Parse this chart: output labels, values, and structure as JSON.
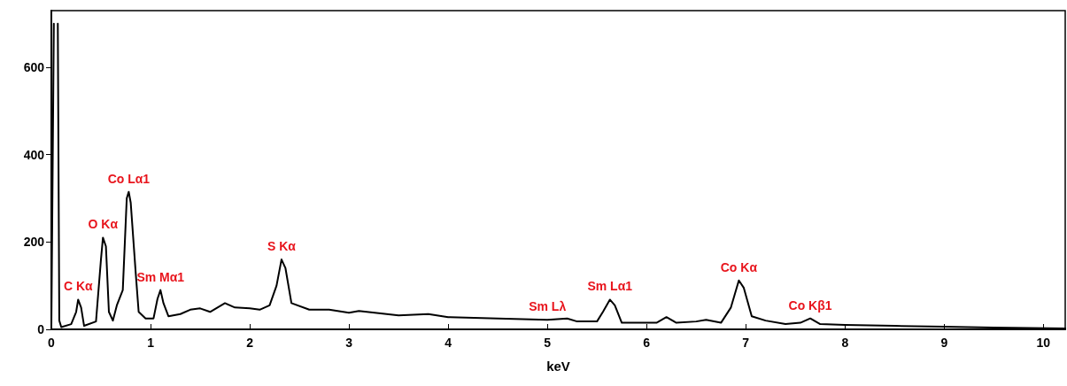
{
  "chart_data": {
    "type": "line",
    "xlabel": "keV",
    "xlim": [
      0,
      10.22
    ],
    "xticks": [
      0,
      1,
      2,
      3,
      4,
      5,
      6,
      7,
      8,
      9,
      10
    ],
    "ylim": [
      0,
      730
    ],
    "yticks": [
      0,
      200,
      400,
      600
    ],
    "grid": false,
    "marker": "none",
    "line_style": "solid",
    "series": [
      {
        "color": "#000000",
        "x": [
          0,
          0.025,
          0.03,
          0.06,
          0.065,
          0.08,
          0.1,
          0.2,
          0.25,
          0.27,
          0.3,
          0.33,
          0.45,
          0.5,
          0.52,
          0.55,
          0.58,
          0.62,
          0.66,
          0.72,
          0.76,
          0.78,
          0.8,
          0.85,
          0.88,
          0.95,
          1.03,
          1.07,
          1.1,
          1.13,
          1.18,
          1.3,
          1.4,
          1.5,
          1.6,
          1.75,
          1.85,
          2.0,
          2.1,
          2.2,
          2.27,
          2.32,
          2.36,
          2.42,
          2.6,
          2.8,
          3.0,
          3.1,
          3.5,
          3.8,
          4.0,
          4.5,
          5.0,
          5.2,
          5.3,
          5.5,
          5.56,
          5.63,
          5.68,
          5.75,
          6.1,
          6.2,
          6.3,
          6.5,
          6.6,
          6.75,
          6.85,
          6.93,
          6.98,
          7.06,
          7.2,
          7.4,
          7.55,
          7.65,
          7.75,
          8.0,
          8.5,
          9.0,
          9.5,
          10.22
        ],
        "values": [
          0,
          700,
          null,
          null,
          700,
          20,
          5,
          12,
          40,
          68,
          50,
          8,
          18,
          160,
          210,
          190,
          40,
          20,
          55,
          90,
          300,
          315,
          290,
          130,
          40,
          25,
          25,
          70,
          90,
          60,
          30,
          35,
          45,
          48,
          40,
          60,
          50,
          48,
          45,
          55,
          100,
          160,
          140,
          60,
          45,
          45,
          38,
          42,
          32,
          35,
          28,
          25,
          22,
          25,
          18,
          18,
          40,
          68,
          55,
          15,
          15,
          28,
          15,
          18,
          22,
          15,
          50,
          112,
          95,
          30,
          20,
          12,
          15,
          25,
          12,
          10,
          8,
          6,
          4,
          2
        ]
      }
    ],
    "annotations": [
      {
        "text": "C Kα",
        "x": 0.27,
        "y": 68
      },
      {
        "text": "O Kα",
        "x": 0.52,
        "y": 210
      },
      {
        "text": "Co Lα1",
        "x": 0.78,
        "y": 315
      },
      {
        "text": "Sm Mα1",
        "x": 1.1,
        "y": 90
      },
      {
        "text": "S Kα",
        "x": 2.32,
        "y": 160
      },
      {
        "text": "Sm Lλ",
        "x": 5.0,
        "y": 22
      },
      {
        "text": "Sm Lα1",
        "x": 5.63,
        "y": 68
      },
      {
        "text": "Co Kα",
        "x": 6.93,
        "y": 112
      },
      {
        "text": "Co Kβ1",
        "x": 7.65,
        "y": 25
      }
    ]
  }
}
